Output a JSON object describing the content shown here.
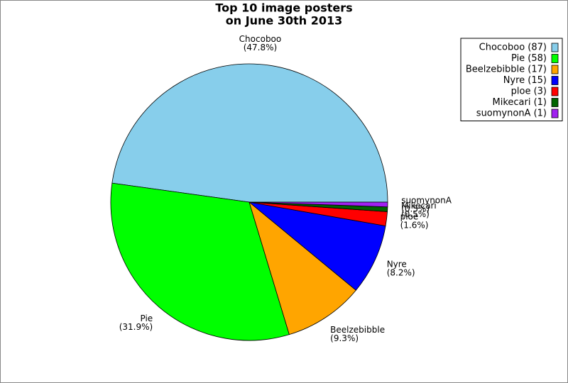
{
  "chart_data": {
    "type": "pie",
    "title": [
      "Top 10 image posters",
      "on June 30th 2013"
    ],
    "categories": [
      "Chocoboo",
      "Pie",
      "Beelzebibble",
      "Nyre",
      "ploe",
      "Mikecari",
      "suomynonA"
    ],
    "values": [
      87,
      58,
      17,
      15,
      3,
      1,
      1
    ],
    "percentages": [
      47.8,
      31.9,
      9.3,
      8.2,
      1.6,
      0.5,
      0.5
    ],
    "percent_labels": [
      "(47.8%)",
      "(31.9%)",
      "(9.3%)",
      "(8.2%)",
      "(1.6%)",
      "(0.5%)",
      "(0.5%)"
    ],
    "legend_labels": [
      "Chocoboo (87)",
      "Pie (58)",
      "Beelzebibble (17)",
      "Nyre (15)",
      "ploe (3)",
      "Mikecari (1)",
      "suomynonA (1)"
    ],
    "colors": [
      "#87ceeb",
      "#00ff00",
      "#ffa500",
      "#0000ff",
      "#ff0000",
      "#006400",
      "#a020f0"
    ],
    "legend_position": "upper right"
  }
}
